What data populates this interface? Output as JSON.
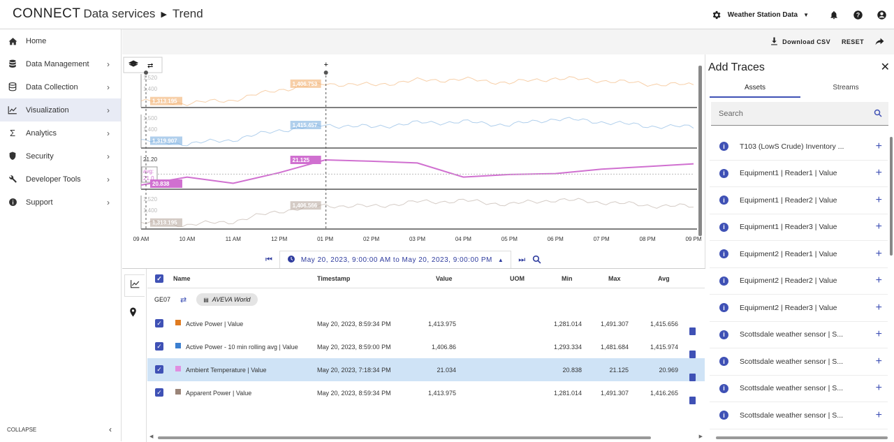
{
  "header": {
    "logo": "CONNECT",
    "breadcrumb_root": "Data services",
    "breadcrumb_page": "Trend",
    "workspace": "Weather Station Data"
  },
  "sidebar": {
    "items": [
      {
        "label": "Home",
        "icon": "home-icon"
      },
      {
        "label": "Data Management",
        "icon": "database-icon"
      },
      {
        "label": "Data Collection",
        "icon": "collection-icon"
      },
      {
        "label": "Visualization",
        "icon": "chart-line-icon"
      },
      {
        "label": "Analytics",
        "icon": "sigma-icon"
      },
      {
        "label": "Security",
        "icon": "shield-icon"
      },
      {
        "label": "Developer Tools",
        "icon": "wrench-icon"
      },
      {
        "label": "Support",
        "icon": "info-icon"
      }
    ],
    "collapse_label": "COLLAPSE"
  },
  "toolbar": {
    "download_label": "Download CSV",
    "reset_label": "RESET"
  },
  "chart": {
    "x_ticks": [
      "09 AM",
      "10 AM",
      "11 AM",
      "12 PM",
      "01 PM",
      "02 PM",
      "03 PM",
      "04 PM",
      "05 PM",
      "06 PM",
      "07 PM",
      "08 PM",
      "09 PM"
    ],
    "time_range": "May 20, 2023, 9:00:00 AM to May 20, 2023, 9:00:00 PM",
    "cursor_plus": "+"
  },
  "chart_data": {
    "type": "line",
    "x": [
      "09 AM",
      "10 AM",
      "11 AM",
      "12 PM",
      "01 PM",
      "02 PM",
      "03 PM",
      "04 PM",
      "05 PM",
      "06 PM",
      "07 PM",
      "08 PM",
      "09 PM"
    ],
    "series": [
      {
        "name": "Active Power | Value",
        "color": "#f0a860",
        "cursor_label": "1,406.753",
        "start_label": "1,313.195",
        "y_ticks": [
          "1,520",
          "1,400"
        ],
        "values": [
          1330,
          1320,
          1335,
          1380,
          1406,
          1400,
          1420,
          1425,
          1410,
          1430,
          1420,
          1405,
          1400
        ]
      },
      {
        "name": "Active Power - 10 min rolling avg | Value",
        "color": "#6fa8dc",
        "cursor_label": "1,415.457",
        "start_label": "1,319.907",
        "y_ticks": [
          "1,500",
          "1,400"
        ],
        "values": [
          1340,
          1325,
          1345,
          1390,
          1415,
          1405,
          1425,
          1430,
          1415,
          1445,
          1430,
          1410,
          1405
        ]
      },
      {
        "name": "Ambient Temperature | Value",
        "color": "#d070d0",
        "cursor_label": "21.125",
        "start_label": "20.838",
        "avg_label": "avg:",
        "avg_value": "21.0",
        "y_ticks": [
          "21.20",
          ""
        ],
        "values": [
          20.84,
          20.93,
          20.86,
          20.98,
          21.125,
          21.11,
          21.09,
          20.93,
          20.96,
          20.97,
          21.02,
          21.05,
          21.08
        ]
      },
      {
        "name": "Apparent Power | Value",
        "color": "#b0a096",
        "cursor_label": "1,406.566",
        "start_label": "1,313.195",
        "y_ticks": [
          "1,520",
          "1,400"
        ],
        "values": [
          1330,
          1320,
          1335,
          1380,
          1405,
          1400,
          1420,
          1425,
          1410,
          1430,
          1420,
          1405,
          1400
        ]
      }
    ]
  },
  "table": {
    "headers": {
      "name": "Name",
      "timestamp": "Timestamp",
      "value": "Value",
      "uom": "UOM",
      "min": "Min",
      "max": "Max",
      "avg": "Avg"
    },
    "group_label": "GE07",
    "group_pill": "AVEVA World",
    "rows": [
      {
        "color": "#e07b20",
        "name": "Active Power | Value",
        "timestamp": "May 20, 2023, 8:59:34 PM",
        "value": "1,413.975",
        "uom": "",
        "min": "1,281.014",
        "max": "1,491.307",
        "avg": "1,415.656"
      },
      {
        "color": "#3b7fd0",
        "name": "Active Power - 10 min rolling avg | Value",
        "timestamp": "May 20, 2023, 8:59:00 PM",
        "value": "1,406.86",
        "uom": "",
        "min": "1,293.334",
        "max": "1,481.684",
        "avg": "1,415.974"
      },
      {
        "color": "#e08ee0",
        "name": "Ambient Temperature | Value",
        "timestamp": "May 20, 2023, 7:18:34 PM",
        "value": "21.034",
        "uom": "",
        "min": "20.838",
        "max": "21.125",
        "avg": "20.969"
      },
      {
        "color": "#9a8478",
        "name": "Apparent Power | Value",
        "timestamp": "May 20, 2023, 8:59:34 PM",
        "value": "1,413.975",
        "uom": "",
        "min": "1,281.014",
        "max": "1,491.307",
        "avg": "1,416.265"
      }
    ]
  },
  "panel": {
    "title": "Add Traces",
    "tabs": [
      "Assets",
      "Streams"
    ],
    "search_placeholder": "Search",
    "items": [
      "T103 (LowS Crude) Inventory ...",
      "Equipment1 | Reader1 | Value",
      "Equipment1 | Reader2 | Value",
      "Equipment1 | Reader3 | Value",
      "Equipment2 | Reader1 | Value",
      "Equipment2 | Reader2 | Value",
      "Equipment2 | Reader3 | Value",
      "Scottsdale weather sensor | S...",
      "Scottsdale weather sensor | S...",
      "Scottsdale weather sensor | S...",
      "Scottsdale weather sensor | S..."
    ]
  },
  "colors": {
    "accent": "#3f51b5",
    "selected_row": "#cfe3f6"
  }
}
